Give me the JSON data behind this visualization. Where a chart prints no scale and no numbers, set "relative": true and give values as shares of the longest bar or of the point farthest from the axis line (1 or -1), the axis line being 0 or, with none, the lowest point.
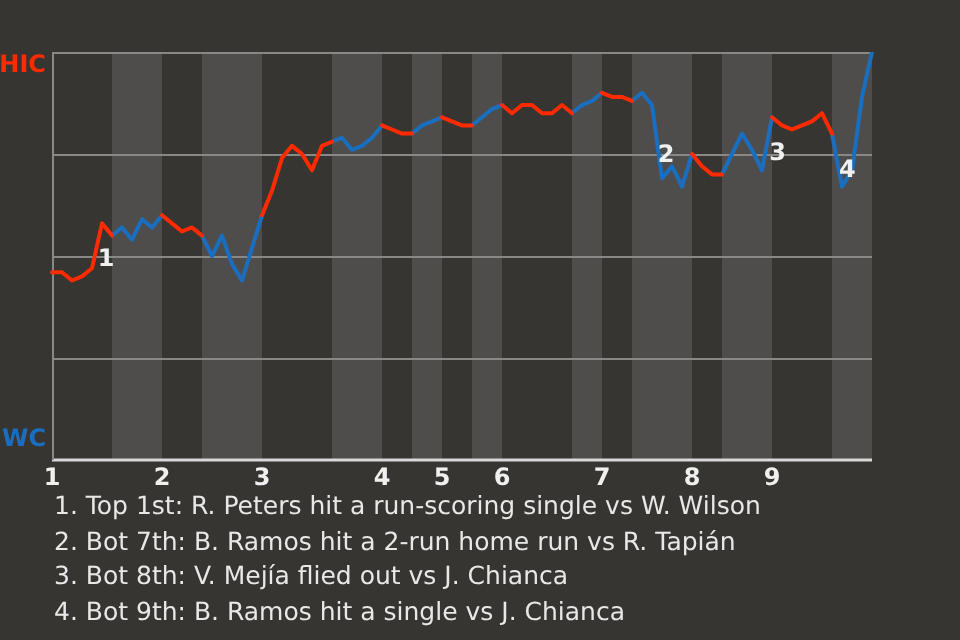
{
  "chart_data": {
    "type": "line",
    "relative": true,
    "categories": [
      "1",
      null,
      null,
      null,
      null,
      null,
      null,
      null,
      null,
      null,
      null,
      "2",
      null,
      null,
      null,
      null,
      null,
      null,
      null,
      null,
      null,
      "3",
      null,
      null,
      null,
      null,
      null,
      null,
      null,
      null,
      null,
      null,
      null,
      "4",
      null,
      null,
      null,
      null,
      null,
      "5",
      null,
      null,
      null,
      null,
      null,
      "6",
      null,
      null,
      null,
      null,
      null,
      null,
      null,
      null,
      null,
      "7",
      null,
      null,
      null,
      null,
      null,
      null,
      null,
      null,
      "8",
      null,
      null,
      null,
      null,
      null,
      null,
      null,
      "9",
      null,
      null,
      null,
      null,
      null,
      null,
      null,
      null,
      null,
      null
    ],
    "legend": false,
    "marker": "none",
    "line_style": "solid",
    "series": [
      {
        "color": "#ff2a00",
        "values": [
          0.46,
          0.46,
          0.44,
          0.45,
          0.47,
          0.58,
          0.55,
          null,
          null,
          null,
          null,
          0.6,
          0.58,
          0.56,
          0.57,
          0.55,
          null,
          null,
          null,
          null,
          null,
          0.6,
          0.66,
          0.74,
          0.77,
          0.75,
          0.71,
          0.77,
          0.78,
          null,
          null,
          null,
          null,
          0.82,
          0.81,
          0.8,
          0.8,
          null,
          null,
          0.84,
          0.83,
          0.82,
          0.82,
          null,
          null,
          0.87,
          0.85,
          0.87,
          0.87,
          0.85,
          0.85,
          0.87,
          0.85,
          null,
          null,
          0.9,
          0.89,
          0.89,
          0.88,
          null,
          null,
          null,
          null,
          null,
          0.75,
          0.72,
          0.7,
          0.7,
          null,
          null,
          null,
          null,
          0.84,
          0.82,
          0.81,
          0.82,
          0.83,
          0.85,
          0.8,
          null,
          null,
          null,
          null
        ],
        "line_style": "solid"
      },
      {
        "color": "#1a6ec0",
        "values": [
          null,
          null,
          null,
          null,
          null,
          null,
          0.55,
          0.57,
          0.54,
          0.59,
          0.57,
          0.6,
          null,
          null,
          null,
          0.55,
          0.5,
          0.55,
          0.48,
          0.44,
          0.52,
          0.6,
          null,
          null,
          null,
          null,
          null,
          null,
          0.78,
          0.79,
          0.76,
          0.77,
          0.79,
          0.82,
          null,
          null,
          0.8,
          0.82,
          0.83,
          0.84,
          null,
          null,
          0.82,
          0.84,
          0.86,
          0.87,
          null,
          null,
          null,
          null,
          null,
          null,
          0.85,
          0.87,
          0.88,
          0.9,
          null,
          null,
          0.88,
          0.9,
          0.87,
          0.69,
          0.72,
          0.67,
          0.75,
          null,
          null,
          0.7,
          0.75,
          0.8,
          0.76,
          0.71,
          0.84,
          null,
          null,
          null,
          null,
          null,
          0.8,
          0.67,
          0.71,
          0.89,
          1
        ]
      }
    ],
    "ref_lines": [
      {
        "axis": "y",
        "value": 0.25,
        "color": "#8a8886"
      },
      {
        "axis": "y",
        "value": 0.5,
        "color": "#8a8886"
      },
      {
        "axis": "y",
        "value": 0.75,
        "color": "#8a8886"
      },
      {
        "axis": "y",
        "value": 1,
        "color": "#8a8886"
      }
    ],
    "annotations": [
      "HIC",
      "WC",
      "1",
      "2",
      "3",
      "4",
      "1. Top 1st: R. Peters hit a run-scoring single vs W. Wilson",
      "2. Bot 7th: B. Ramos hit a 2-run home run vs R. Tapián",
      "3. Bot 8th: V. Mejía flied out vs J. Chianca",
      "4. Bot 9th: B. Ramos hit a single vs J. Chianca"
    ]
  }
}
